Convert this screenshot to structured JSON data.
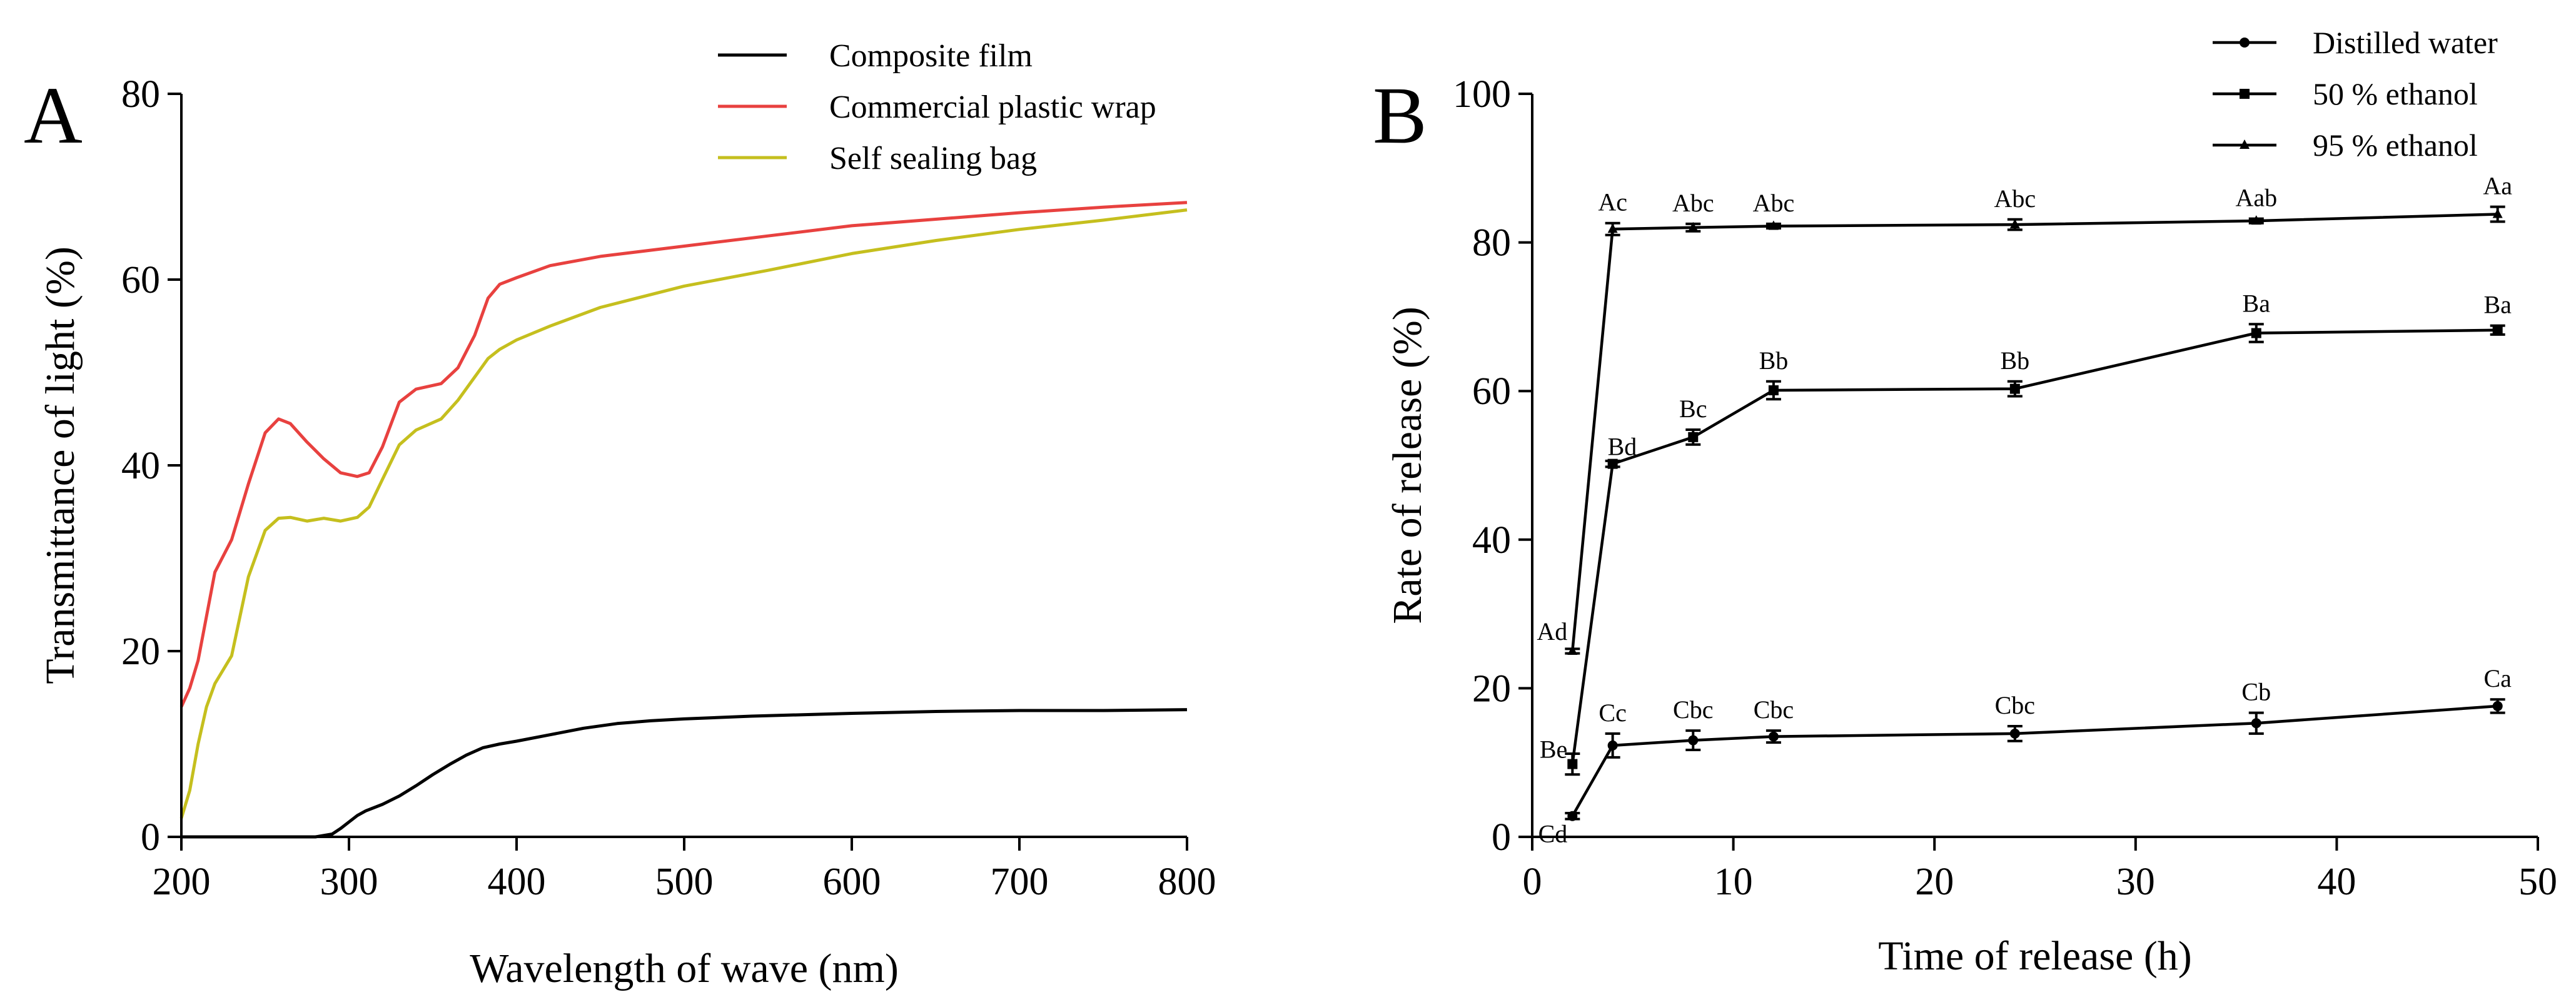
{
  "figure": {
    "panels": [
      "A",
      "B"
    ]
  },
  "chart_data": [
    {
      "panel": "A",
      "type": "line",
      "xlabel": "Wavelength of wave (nm)",
      "ylabel": "Transmittance of light (%)",
      "xlim": [
        200,
        800
      ],
      "ylim": [
        0,
        80
      ],
      "xticks": [
        200,
        300,
        400,
        500,
        600,
        700,
        800
      ],
      "yticks": [
        0,
        20,
        40,
        60,
        80
      ],
      "legend_position": "top-right",
      "series": [
        {
          "name": "Composite film",
          "color": "#000000",
          "x": [
            200,
            280,
            290,
            295,
            300,
            305,
            310,
            320,
            330,
            340,
            350,
            360,
            370,
            380,
            390,
            400,
            420,
            440,
            460,
            480,
            500,
            540,
            600,
            650,
            700,
            750,
            800
          ],
          "y": [
            0,
            0,
            0.3,
            0.9,
            1.6,
            2.3,
            2.8,
            3.5,
            4.4,
            5.5,
            6.7,
            7.8,
            8.8,
            9.6,
            10.0,
            10.3,
            11.0,
            11.7,
            12.2,
            12.5,
            12.7,
            13.0,
            13.3,
            13.5,
            13.6,
            13.6,
            13.7
          ]
        },
        {
          "name": "Commercial plastic wrap",
          "color": "#e8413f",
          "x": [
            200,
            205,
            210,
            220,
            230,
            240,
            250,
            258,
            265,
            275,
            285,
            295,
            305,
            312,
            320,
            330,
            340,
            355,
            365,
            375,
            383,
            390,
            400,
            420,
            450,
            500,
            550,
            600,
            650,
            700,
            750,
            800
          ],
          "y": [
            14,
            16,
            19,
            28.5,
            32,
            38,
            43.5,
            45,
            44.5,
            42.5,
            40.7,
            39.2,
            38.8,
            39.2,
            42,
            46.8,
            48.2,
            48.8,
            50.5,
            54,
            58,
            59.5,
            60.2,
            61.5,
            62.5,
            63.6,
            64.7,
            65.8,
            66.5,
            67.2,
            67.8,
            68.3
          ]
        },
        {
          "name": "Self sealing bag",
          "color": "#c5bf1e",
          "x": [
            200,
            205,
            210,
            215,
            220,
            230,
            240,
            250,
            258,
            265,
            275,
            285,
            295,
            305,
            312,
            320,
            330,
            340,
            355,
            365,
            375,
            383,
            390,
            400,
            420,
            450,
            500,
            550,
            600,
            650,
            700,
            750,
            800
          ],
          "y": [
            2,
            5,
            10,
            14,
            16.5,
            19.5,
            28,
            33,
            34.3,
            34.4,
            34,
            34.3,
            34,
            34.4,
            35.5,
            38.5,
            42.2,
            43.8,
            45,
            47,
            49.5,
            51.5,
            52.5,
            53.5,
            55,
            57,
            59.3,
            61,
            62.8,
            64.2,
            65.4,
            66.4,
            67.5
          ]
        }
      ]
    },
    {
      "panel": "B",
      "type": "line",
      "xlabel": "Time of release (h)",
      "ylabel": "Rate of release (%)",
      "xlim": [
        0,
        50
      ],
      "ylim": [
        0,
        100
      ],
      "xticks": [
        0,
        10,
        20,
        30,
        40,
        50
      ],
      "yticks": [
        0,
        20,
        40,
        60,
        80,
        100
      ],
      "legend_position": "top-right",
      "series": [
        {
          "name": "Distilled water",
          "marker": "circle",
          "x": [
            2,
            4,
            8,
            12,
            24,
            36,
            48
          ],
          "y": [
            2.8,
            12.3,
            13.0,
            13.5,
            13.9,
            15.3,
            17.6
          ],
          "err": [
            0.4,
            1.6,
            1.3,
            0.8,
            1.0,
            1.4,
            0.9
          ],
          "labels": [
            "Cd",
            "Cc",
            "Cbc",
            "Cbc",
            "Cbc",
            "Cb",
            "Ca"
          ]
        },
        {
          "name": "50 % ethanol",
          "marker": "square",
          "x": [
            2,
            4,
            8,
            12,
            24,
            36,
            48
          ],
          "y": [
            9.8,
            50.2,
            53.8,
            60.1,
            60.3,
            67.8,
            68.2
          ],
          "err": [
            1.4,
            0.4,
            1.0,
            1.2,
            1.0,
            1.2,
            0.6
          ],
          "labels": [
            "Be",
            "Bd",
            "Bc",
            "Bb",
            "Bb",
            "Ba",
            "Ba"
          ]
        },
        {
          "name": "95 % ethanol",
          "marker": "triangle",
          "x": [
            2,
            4,
            8,
            12,
            24,
            36,
            48
          ],
          "y": [
            25.0,
            81.8,
            82.0,
            82.2,
            82.4,
            82.9,
            83.8
          ],
          "err": [
            0.3,
            0.8,
            0.5,
            0.3,
            0.7,
            0.3,
            1.0
          ],
          "labels": [
            "Ad",
            "Ac",
            "Abc",
            "Abc",
            "Abc",
            "Aab",
            "Aa"
          ]
        }
      ]
    }
  ]
}
